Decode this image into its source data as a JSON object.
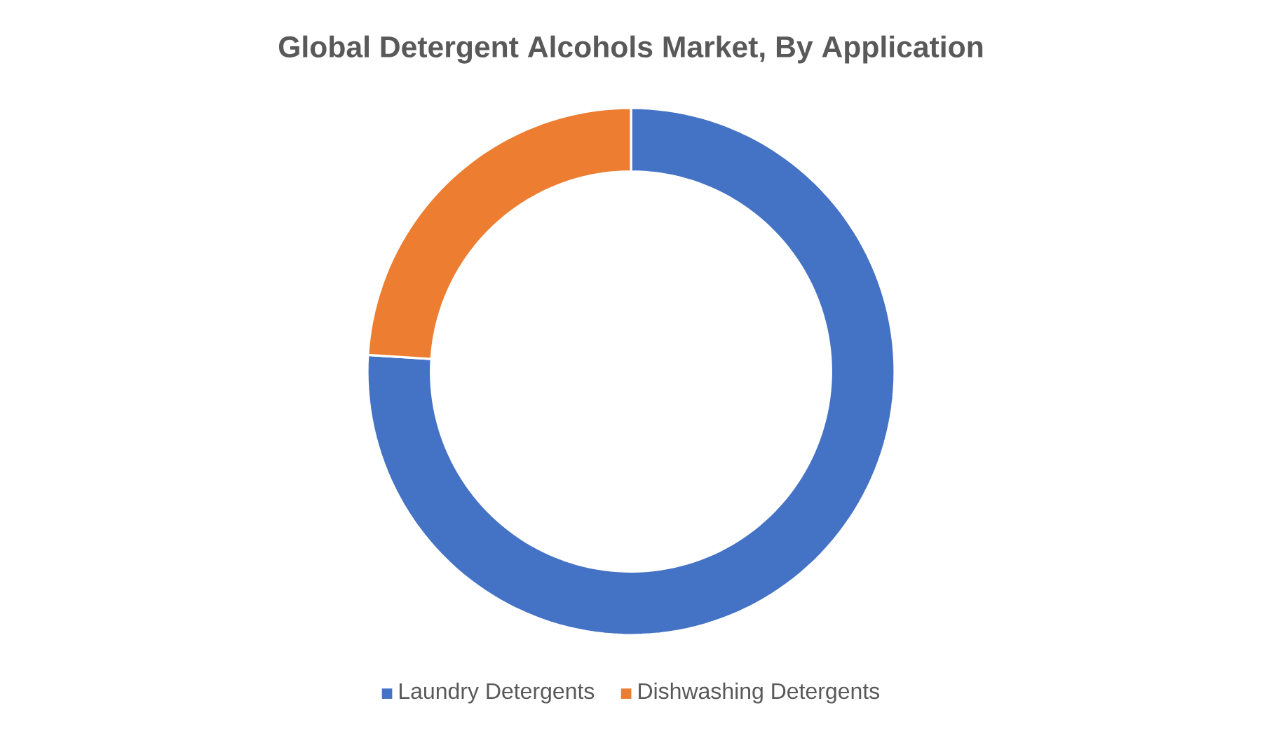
{
  "chart_data": {
    "type": "donut",
    "title": "Global Detergent Alcohols Market, By Application",
    "categories": [
      "Laundry Detergents",
      "Dishwashing Detergents"
    ],
    "values": [
      76,
      24
    ],
    "colors": [
      "#4472c4",
      "#ed7d31"
    ],
    "legend": "bottom"
  }
}
